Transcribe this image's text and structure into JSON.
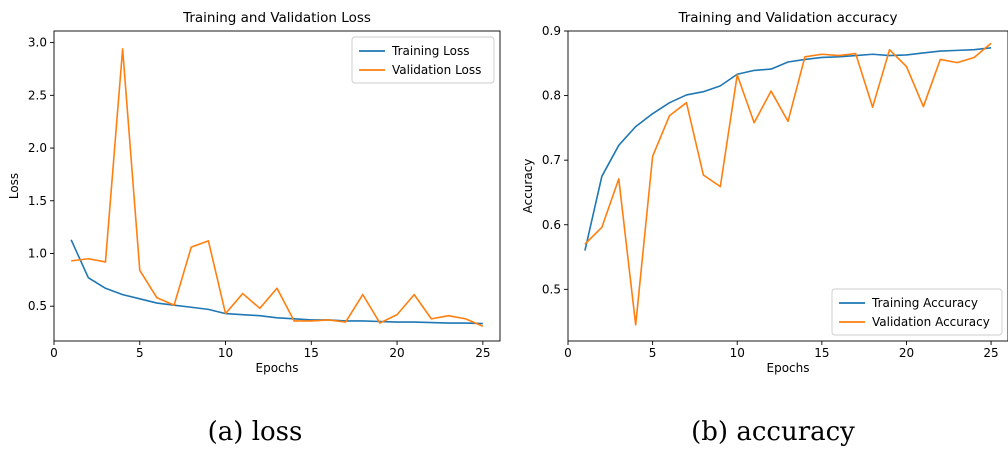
{
  "chart_data": [
    {
      "type": "line",
      "title": "Training and Validation Loss",
      "xlabel": "Epochs",
      "ylabel": "Loss",
      "xlim": [
        0,
        26
      ],
      "ylim": [
        0.17,
        3.11
      ],
      "xticks": [
        0,
        5,
        10,
        15,
        20,
        25
      ],
      "yticks": [
        0.5,
        1.0,
        1.5,
        2.0,
        2.5,
        3.0
      ],
      "ytick_labels": [
        "0.5",
        "1.0",
        "1.5",
        "2.0",
        "2.5",
        "3.0"
      ],
      "grid": false,
      "legend_position": "top-right",
      "x": [
        1,
        2,
        3,
        4,
        5,
        6,
        7,
        8,
        9,
        10,
        11,
        12,
        13,
        14,
        15,
        16,
        17,
        18,
        19,
        20,
        21,
        22,
        23,
        24,
        25
      ],
      "series": [
        {
          "name": "Training Loss",
          "color": "#1f77b4",
          "values": [
            1.13,
            0.77,
            0.67,
            0.61,
            0.57,
            0.53,
            0.51,
            0.49,
            0.47,
            0.43,
            0.42,
            0.41,
            0.39,
            0.38,
            0.37,
            0.37,
            0.36,
            0.36,
            0.355,
            0.35,
            0.35,
            0.345,
            0.34,
            0.34,
            0.335
          ]
        },
        {
          "name": "Validation Loss",
          "color": "#ff7f0e",
          "values": [
            0.93,
            0.95,
            0.92,
            2.94,
            0.84,
            0.58,
            0.51,
            1.06,
            1.12,
            0.43,
            0.62,
            0.48,
            0.67,
            0.36,
            0.36,
            0.37,
            0.35,
            0.61,
            0.34,
            0.42,
            0.61,
            0.38,
            0.41,
            0.38,
            0.31
          ]
        }
      ]
    },
    {
      "type": "line",
      "title": "Training and Validation accuracy",
      "xlabel": "Epochs",
      "ylabel": "Accuracy",
      "xlim": [
        0,
        26
      ],
      "ylim": [
        0.42,
        0.9
      ],
      "xticks": [
        0,
        5,
        10,
        15,
        20,
        25
      ],
      "yticks": [
        0.5,
        0.6,
        0.7,
        0.8,
        0.9
      ],
      "ytick_labels": [
        "0.5",
        "0.6",
        "0.7",
        "0.8",
        "0.9"
      ],
      "grid": false,
      "legend_position": "bottom-right",
      "x": [
        1,
        2,
        3,
        4,
        5,
        6,
        7,
        8,
        9,
        10,
        11,
        12,
        13,
        14,
        15,
        16,
        17,
        18,
        19,
        20,
        21,
        22,
        23,
        24,
        25
      ],
      "series": [
        {
          "name": "Training Accuracy",
          "color": "#1f77b4",
          "values": [
            0.56,
            0.675,
            0.723,
            0.752,
            0.772,
            0.789,
            0.801,
            0.806,
            0.815,
            0.833,
            0.839,
            0.841,
            0.852,
            0.856,
            0.859,
            0.86,
            0.862,
            0.864,
            0.862,
            0.863,
            0.866,
            0.869,
            0.87,
            0.871,
            0.874
          ]
        },
        {
          "name": "Validation Accuracy",
          "color": "#ff7f0e",
          "values": [
            0.57,
            0.596,
            0.671,
            0.445,
            0.706,
            0.769,
            0.789,
            0.677,
            0.659,
            0.832,
            0.758,
            0.807,
            0.76,
            0.86,
            0.864,
            0.862,
            0.865,
            0.782,
            0.871,
            0.845,
            0.783,
            0.856,
            0.851,
            0.859,
            0.881
          ]
        }
      ]
    }
  ],
  "captions": [
    "(a) loss",
    "(b) accuracy"
  ]
}
